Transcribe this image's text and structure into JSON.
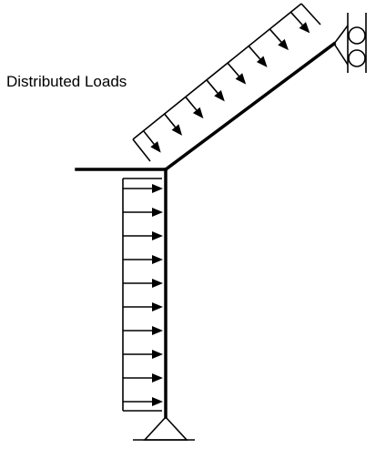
{
  "labels": {
    "distributed_loads": "Distributed Loads"
  },
  "colors": {
    "ink": "#000000",
    "background": "#ffffff"
  },
  "diagram": {
    "type": "structural frame",
    "supports": [
      "pin",
      "roller"
    ],
    "loads": {
      "inclined_member": {
        "arrow_count": 8,
        "direction": "perpendicular to member, toward member"
      },
      "column": {
        "arrow_count": 10,
        "direction": "horizontal, toward column"
      }
    }
  }
}
